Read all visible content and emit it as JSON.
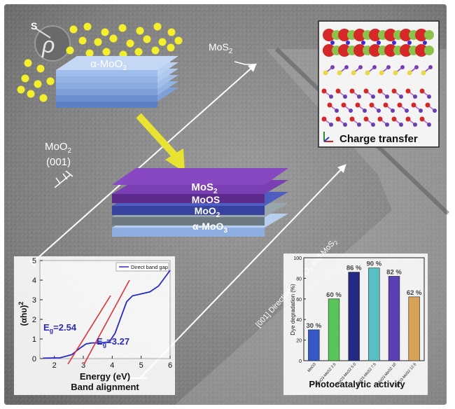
{
  "sulfur_label": "S",
  "moo3_stack_label": "α-MoO",
  "moo3_sub": "3",
  "mos2_top_label": "MoS",
  "mos2_top_sub": "2",
  "moo2_label": "MoO",
  "moo2_sub": "2",
  "moo2_facet": "(001)",
  "hetero_layers": {
    "mos2": "MoS",
    "mos2_sub": "2",
    "moos": "MoOS",
    "moo2": "MoO",
    "moo2_sub": "2",
    "amoo3": "α-MoO",
    "amoo3_sub": "3"
  },
  "direction_label": "[001] Direction of MoO",
  "direction_label_mid": " and MoS",
  "direction_sub": "2",
  "charge_transfer_label": "Charge transfer",
  "colors": {
    "moo3_layer": "#a9c4ea",
    "mos2_layer": "#7a3fb3",
    "moos_layer": "#4a58b8",
    "moo2_layer": "#8f9aa3",
    "sulfur": "#f4ef2a",
    "arrow": "#e8e331"
  },
  "band_inset": {
    "title": "Band alignment",
    "xlabel": "Energy (eV)",
    "ylabel": "(αhυ)",
    "ylabel_sup": "2",
    "legend": "Direct band gap",
    "eg1_label": "E",
    "eg1_sub": "g",
    "eg1_value": "=2.54",
    "eg2_label": "E",
    "eg2_sub": "g",
    "eg2_value": "=3.27",
    "x_ticks": [
      "2",
      "3",
      "4",
      "5",
      "6"
    ],
    "y_ticks": [
      "0",
      "1",
      "2",
      "3",
      "4",
      "5"
    ]
  },
  "chart_data": {
    "type": "bar",
    "title": "Photocatalytic activity",
    "ylabel": "Dye degradation (%)",
    "ylim": [
      0,
      100
    ],
    "y_ticks": [
      "0",
      "20",
      "40",
      "60",
      "80",
      "100"
    ],
    "categories": [
      "MoO3",
      "MoO3-MoS2 2.5",
      "MoO3-MoS2 5.0",
      "MoO3-MoS2 7.5",
      "MoO3-MoS2 10",
      "MoO3-MoS2 12.5"
    ],
    "values": [
      30,
      60,
      86,
      90,
      82,
      62
    ],
    "labels": [
      "30 %",
      "60 %",
      "86 %",
      "90 %",
      "82 %",
      "62 %"
    ],
    "colors": [
      "#3557c8",
      "#58c45a",
      "#232a86",
      "#57c0c4",
      "#5b3fb6",
      "#d6a25a"
    ]
  }
}
